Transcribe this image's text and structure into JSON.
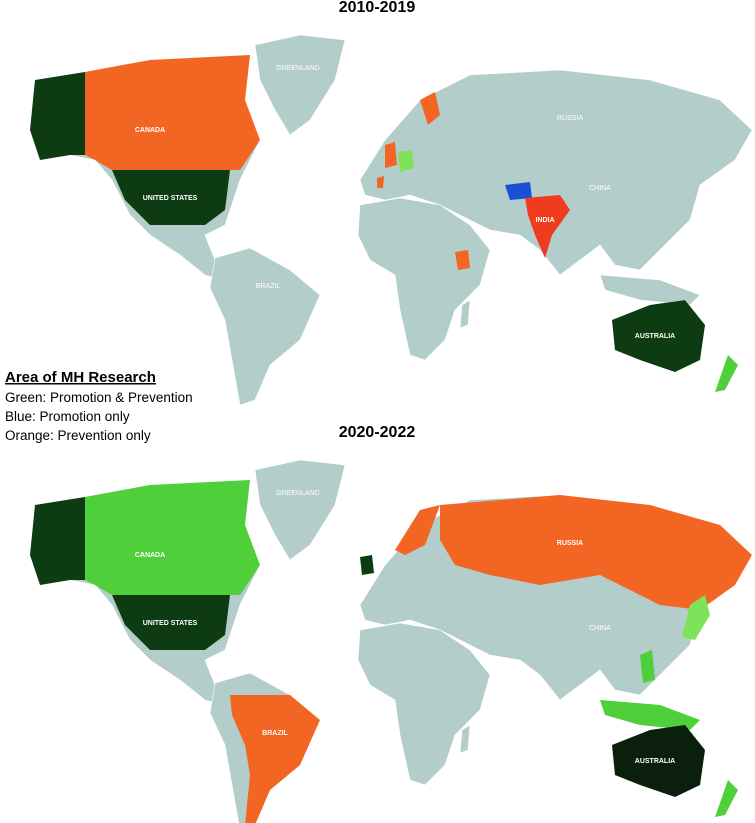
{
  "maps": [
    {
      "title": "2010-2019",
      "labels": [
        "GREENLAND",
        "CANADA",
        "UNITED STATES",
        "RUSSIA",
        "CHINA",
        "INDIA",
        "BRAZIL",
        "AUSTRALIA"
      ]
    },
    {
      "title": "2020-2022",
      "labels": [
        "GREENLAND",
        "CANADA",
        "UNITED STATES",
        "RUSSIA",
        "CHINA",
        "BRAZIL",
        "AUSTRALIA"
      ]
    }
  ],
  "legend": {
    "heading": "Area of MH Research",
    "items": [
      "Green: Promotion & Prevention",
      "Blue: Promotion only",
      "Orange: Prevention only"
    ]
  }
}
